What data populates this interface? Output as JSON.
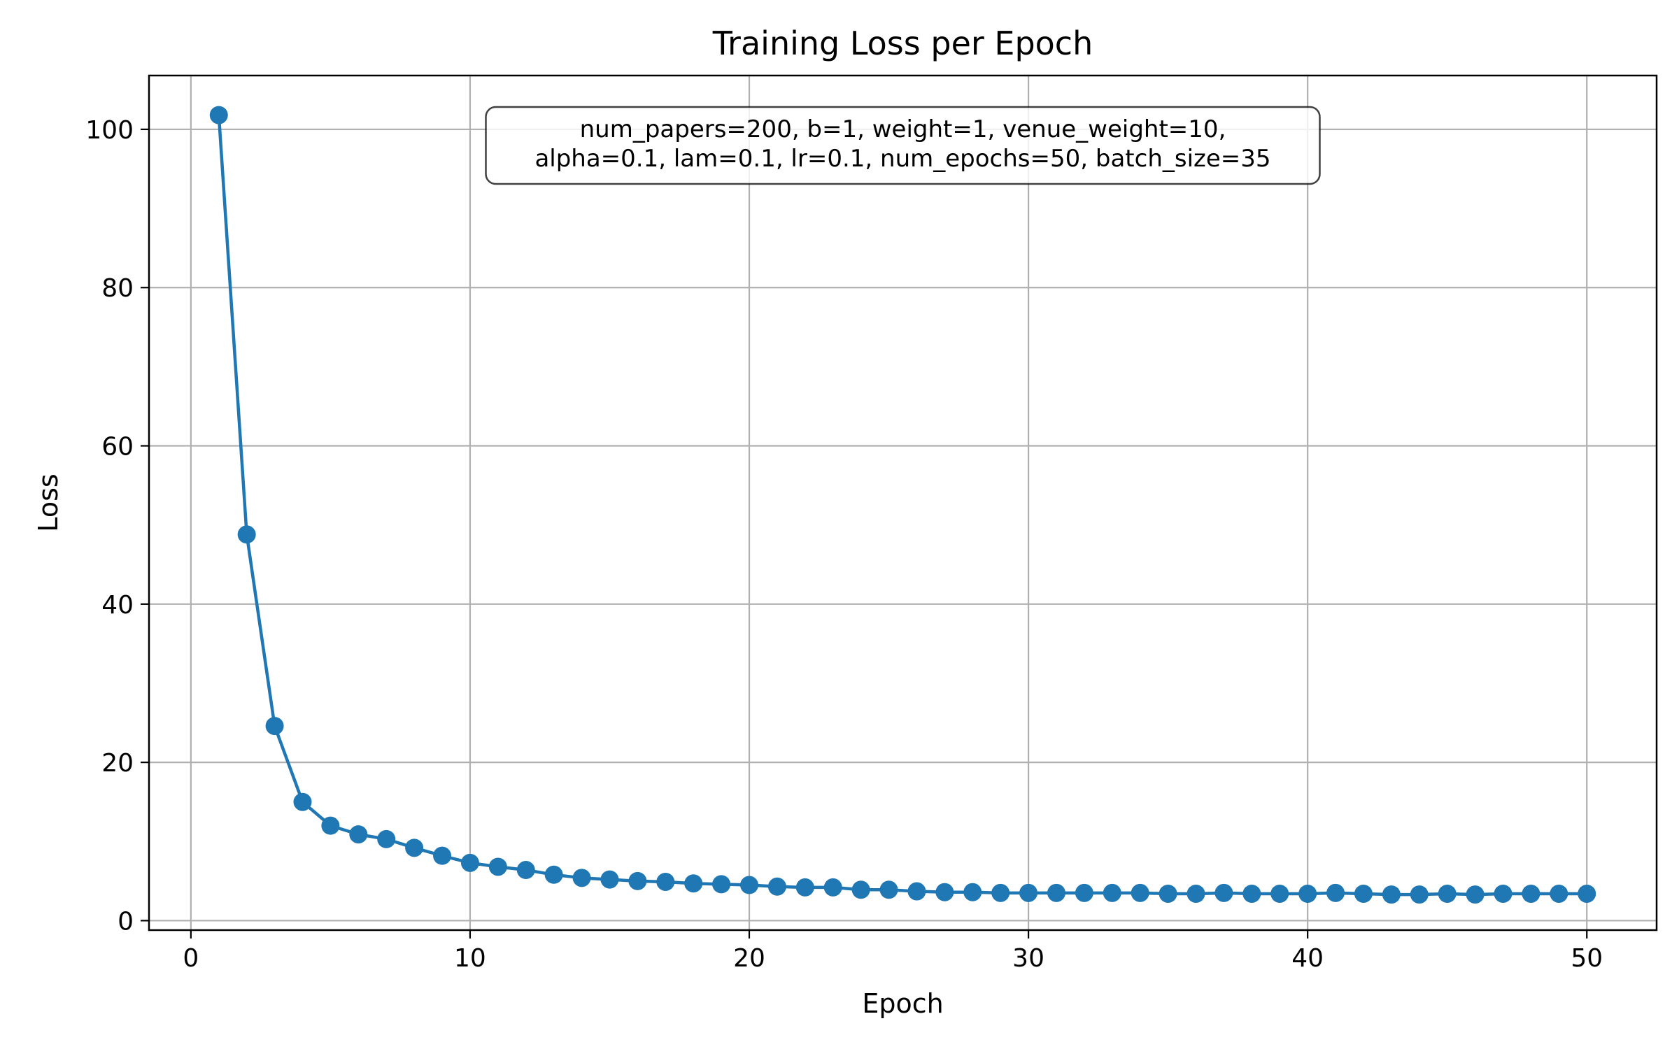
{
  "chart_data": {
    "type": "line",
    "title": "Training Loss per Epoch",
    "xlabel": "Epoch",
    "ylabel": "Loss",
    "xlim": [
      -1.5,
      52.5
    ],
    "ylim": [
      -1.2,
      106.8
    ],
    "xticks": [
      0,
      10,
      20,
      30,
      40,
      50
    ],
    "yticks": [
      0,
      20,
      40,
      60,
      80,
      100
    ],
    "grid": true,
    "line_color": "#1f77b4",
    "marker": "circle",
    "annotation": {
      "lines": [
        "num_papers=200, b=1, weight=1, venue_weight=10,",
        "alpha=0.1, lam=0.1, lr=0.1, num_epochs=50, batch_size=35"
      ],
      "placement": "top-center"
    },
    "series": [
      {
        "x": [
          1,
          2,
          3,
          4,
          5,
          6,
          7,
          8,
          9,
          10,
          11,
          12,
          13,
          14,
          15,
          16,
          17,
          18,
          19,
          20,
          21,
          22,
          23,
          24,
          25,
          26,
          27,
          28,
          29,
          30,
          31,
          32,
          33,
          34,
          35,
          36,
          37,
          38,
          39,
          40,
          41,
          42,
          43,
          44,
          45,
          46,
          47,
          48,
          49,
          50
        ],
        "y": [
          101.8,
          48.8,
          24.6,
          15.0,
          12.0,
          10.9,
          10.3,
          9.2,
          8.2,
          7.3,
          6.8,
          6.4,
          5.8,
          5.4,
          5.2,
          5.0,
          4.9,
          4.7,
          4.6,
          4.5,
          4.3,
          4.2,
          4.2,
          3.9,
          3.9,
          3.7,
          3.6,
          3.6,
          3.5,
          3.5,
          3.5,
          3.5,
          3.5,
          3.5,
          3.4,
          3.4,
          3.5,
          3.4,
          3.4,
          3.4,
          3.5,
          3.4,
          3.3,
          3.3,
          3.4,
          3.3,
          3.4,
          3.4,
          3.4,
          3.4
        ]
      }
    ]
  }
}
